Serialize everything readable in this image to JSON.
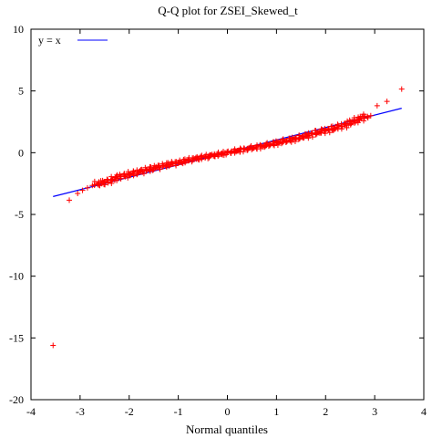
{
  "chart_data": {
    "type": "scatter",
    "title": "Q-Q plot for ZSEI_Skewed_t",
    "xlabel": "Normal quantiles",
    "ylabel": "",
    "xlim": [
      -4,
      4
    ],
    "ylim": [
      -20,
      10
    ],
    "x_ticks": [
      -4,
      -3,
      -2,
      -1,
      0,
      1,
      2,
      3,
      4
    ],
    "y_ticks": [
      10,
      5,
      0,
      -5,
      -10,
      -15,
      -20
    ],
    "grid": false,
    "legend_position": "top-left",
    "colors": {
      "points": "#ff0000",
      "reference_line": "#0000ff",
      "axes": "#000000"
    },
    "series": [
      {
        "name": "y = x",
        "type": "line",
        "x": [
          -3.55,
          3.55
        ],
        "y": [
          -3.55,
          3.6
        ]
      },
      {
        "type": "scatter",
        "marker": "plus",
        "points": [
          [
            -3.55,
            -15.6
          ],
          [
            -3.22,
            -3.85
          ],
          [
            -3.05,
            -3.3
          ],
          [
            -2.95,
            -3.05
          ],
          [
            -2.85,
            -2.85
          ],
          [
            -2.75,
            -2.65
          ],
          [
            -2.62,
            -2.5
          ],
          [
            -2.5,
            -2.4
          ],
          [
            -2.35,
            -2.2
          ],
          [
            -2.2,
            -1.95
          ],
          [
            -2.0,
            -1.75
          ],
          [
            -1.8,
            -1.55
          ],
          [
            -1.6,
            -1.35
          ],
          [
            -1.4,
            -1.15
          ],
          [
            -1.2,
            -0.95
          ],
          [
            -1.0,
            -0.8
          ],
          [
            -0.8,
            -0.6
          ],
          [
            -0.6,
            -0.45
          ],
          [
            -0.4,
            -0.3
          ],
          [
            -0.2,
            -0.15
          ],
          [
            0.0,
            0.0
          ],
          [
            0.2,
            0.15
          ],
          [
            0.4,
            0.3
          ],
          [
            0.6,
            0.45
          ],
          [
            0.8,
            0.6
          ],
          [
            1.0,
            0.8
          ],
          [
            1.2,
            0.95
          ],
          [
            1.4,
            1.15
          ],
          [
            1.6,
            1.35
          ],
          [
            1.8,
            1.6
          ],
          [
            2.0,
            1.8
          ],
          [
            2.2,
            2.0
          ],
          [
            2.4,
            2.25
          ],
          [
            2.55,
            2.5
          ],
          [
            2.7,
            2.75
          ],
          [
            2.8,
            2.95
          ],
          [
            2.92,
            3.0
          ],
          [
            3.05,
            3.8
          ],
          [
            3.25,
            4.15
          ],
          [
            3.55,
            5.15
          ]
        ]
      }
    ]
  }
}
